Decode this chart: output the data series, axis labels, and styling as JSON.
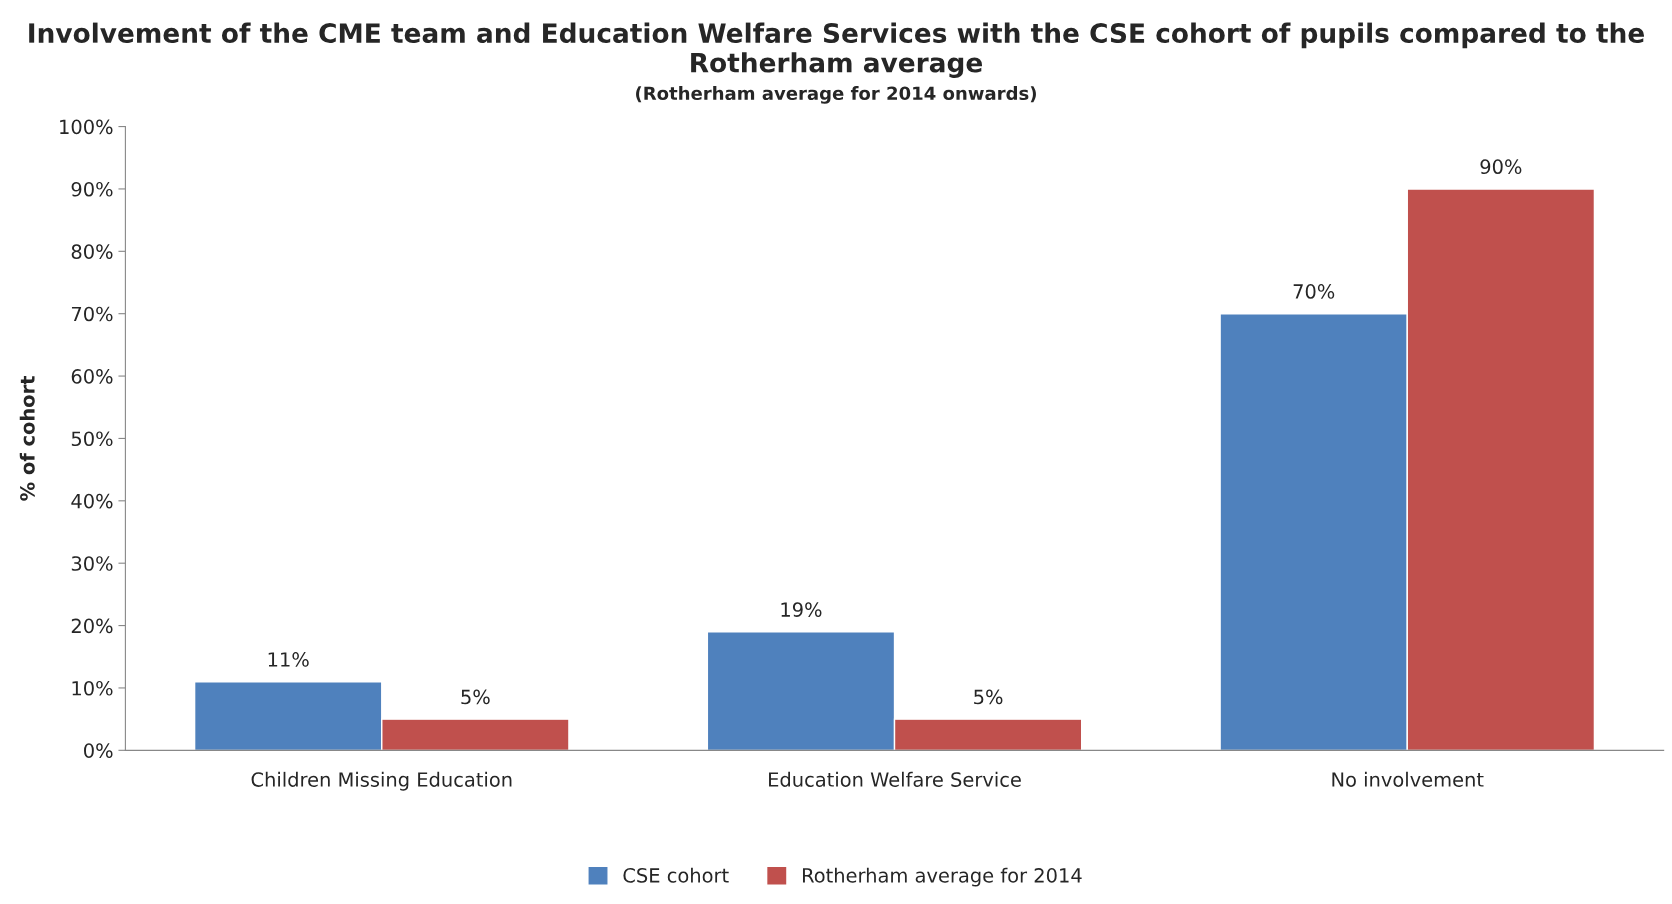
{
  "chart_data": {
    "type": "bar",
    "title": "Involvement of the CME team and Education Welfare Services with the CSE cohort of pupils compared to the Rotherham average",
    "subtitle": "(Rotherham average for 2014 onwards)",
    "ylabel": "% of cohort",
    "categories": [
      "Children Missing Education",
      "Education Welfare Service",
      "No involvement"
    ],
    "series": [
      {
        "name": "CSE cohort",
        "color": "#4f81bd",
        "values": [
          11,
          19,
          70
        ],
        "value_labels": [
          "11%",
          "19%",
          "70%"
        ]
      },
      {
        "name": "Rotherham average for 2014",
        "color": "#c0504d",
        "values": [
          5,
          5,
          90
        ],
        "value_labels": [
          "5%",
          "5%",
          "90%"
        ]
      }
    ],
    "ylim": [
      0,
      100
    ],
    "yticks": [
      {
        "value": 0,
        "label": "0%"
      },
      {
        "value": 10,
        "label": "10%"
      },
      {
        "value": 20,
        "label": "20%"
      },
      {
        "value": 30,
        "label": "30%"
      },
      {
        "value": 40,
        "label": "40%"
      },
      {
        "value": 50,
        "label": "50%"
      },
      {
        "value": 60,
        "label": "60%"
      },
      {
        "value": 70,
        "label": "70%"
      },
      {
        "value": 80,
        "label": "80%"
      },
      {
        "value": 90,
        "label": "90%"
      },
      {
        "value": 100,
        "label": "100%"
      }
    ],
    "grid": false,
    "legend": "bottom"
  }
}
